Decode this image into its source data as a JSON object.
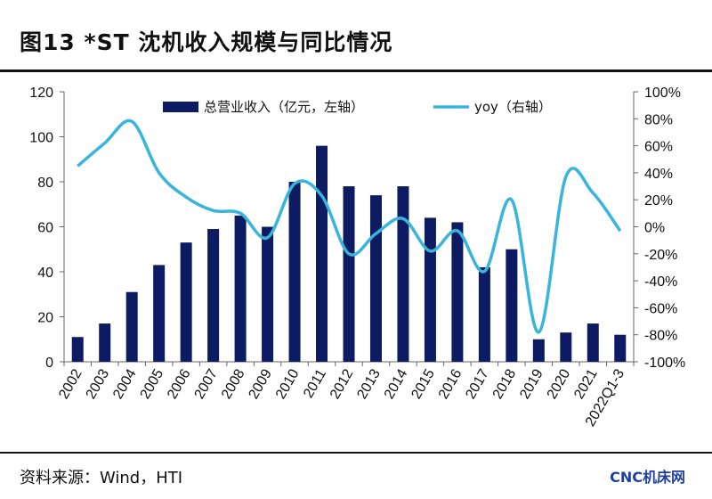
{
  "title": "图13 *ST 沈机收入规模与同比情况",
  "source": "资料来源：Wind，HTI",
  "watermark": "CNC机床网",
  "colors": {
    "bar": "#0d1b63",
    "line": "#39b4dc"
  },
  "chart_data": {
    "type": "bar+line",
    "categories": [
      "2002",
      "2003",
      "2004",
      "2005",
      "2006",
      "2007",
      "2008",
      "2009",
      "2010",
      "2011",
      "2012",
      "2013",
      "2014",
      "2015",
      "2016",
      "2017",
      "2018",
      "2019",
      "2020",
      "2021",
      "2022Q1-3"
    ],
    "series": [
      {
        "name": "总营业收入（亿元，左轴）",
        "type": "bar",
        "axis": "left",
        "values": [
          11,
          17,
          31,
          43,
          53,
          59,
          65,
          60,
          80,
          96,
          78,
          74,
          78,
          64,
          62,
          42,
          50,
          10,
          13,
          17,
          12
        ]
      },
      {
        "name": "yoy（右轴）",
        "type": "line",
        "axis": "right",
        "values": [
          45,
          62,
          78,
          40,
          22,
          12,
          10,
          -8,
          32,
          23,
          -20,
          -5,
          6,
          -18,
          -3,
          -33,
          20,
          -78,
          37,
          25,
          -3
        ]
      }
    ],
    "left_axis": {
      "min": 0,
      "max": 120,
      "ticks": [
        "0",
        "20",
        "40",
        "60",
        "80",
        "100",
        "120"
      ]
    },
    "right_axis": {
      "min": -100,
      "max": 100,
      "unit": "%",
      "ticks": [
        "-100%",
        "-80%",
        "-60%",
        "-40%",
        "-20%",
        "0%",
        "20%",
        "40%",
        "60%",
        "80%",
        "100%"
      ]
    },
    "legend_position": "top",
    "grid": false
  }
}
